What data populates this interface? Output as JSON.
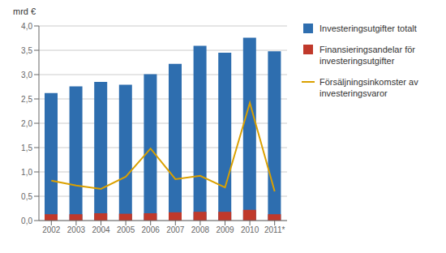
{
  "chart_data": {
    "type": "bar",
    "ylabel": "mrd €",
    "categories": [
      "2002",
      "2003",
      "2004",
      "2005",
      "2006",
      "2007",
      "2008",
      "2009",
      "2010",
      "2011*"
    ],
    "series": [
      {
        "name": "Investeringsutgifter totalt",
        "type": "bar",
        "color": "#2E6EAF",
        "values": [
          2.62,
          2.76,
          2.85,
          2.79,
          3.01,
          3.22,
          3.59,
          3.45,
          3.76,
          3.48
        ]
      },
      {
        "name": "Finansieringsandelar för\ninvesteringsutgifter",
        "type": "bar",
        "color": "#C0392B",
        "values": [
          0.13,
          0.13,
          0.15,
          0.14,
          0.15,
          0.17,
          0.18,
          0.18,
          0.22,
          0.13
        ]
      },
      {
        "name": "Försäljningsinkomster av\ninvesteringsvaror",
        "type": "line",
        "color": "#DAA000",
        "values": [
          0.82,
          0.72,
          0.65,
          0.9,
          1.48,
          0.85,
          0.92,
          0.68,
          2.42,
          0.6
        ]
      }
    ],
    "ylim": [
      0,
      4.0
    ],
    "yticks": [
      {
        "value": 0.0,
        "label": "0,0"
      },
      {
        "value": 0.5,
        "label": "0,5"
      },
      {
        "value": 1.0,
        "label": "1,0"
      },
      {
        "value": 1.5,
        "label": "1,5"
      },
      {
        "value": 2.0,
        "label": "2,0"
      },
      {
        "value": 2.5,
        "label": "2,5"
      },
      {
        "value": 3.0,
        "label": "3,0"
      },
      {
        "value": 3.5,
        "label": "3,5"
      },
      {
        "value": 4.0,
        "label": "4,0"
      }
    ],
    "grid": true,
    "legend": "right"
  }
}
